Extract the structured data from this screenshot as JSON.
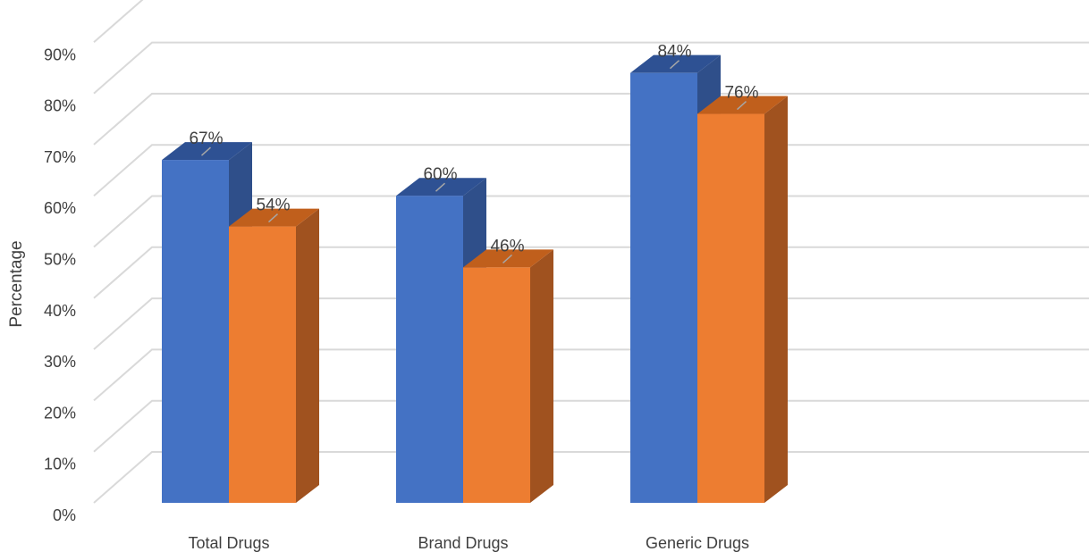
{
  "chart_data": {
    "type": "bar",
    "title": "",
    "xlabel": "",
    "ylabel": "Percentage",
    "ylim": [
      0,
      100
    ],
    "yticks": [
      "0%",
      "10%",
      "20%",
      "30%",
      "40%",
      "50%",
      "60%",
      "70%",
      "80%",
      "90%"
    ],
    "grid": true,
    "legend": "none",
    "categories": [
      "Total Drugs",
      "Brand Drugs",
      "Generic Drugs"
    ],
    "series": [
      {
        "values": [
          67,
          60,
          84
        ],
        "labels": [
          "67%",
          "60%",
          "84%"
        ],
        "color": "#4472C4",
        "side_color": "#2F4F8A",
        "top_color": "#2E5193"
      },
      {
        "values": [
          54,
          46,
          76
        ],
        "labels": [
          "54%",
          "46%",
          "76%"
        ],
        "color": "#ED7D31",
        "side_color": "#A0521F",
        "top_color": "#C05F1C"
      }
    ]
  }
}
